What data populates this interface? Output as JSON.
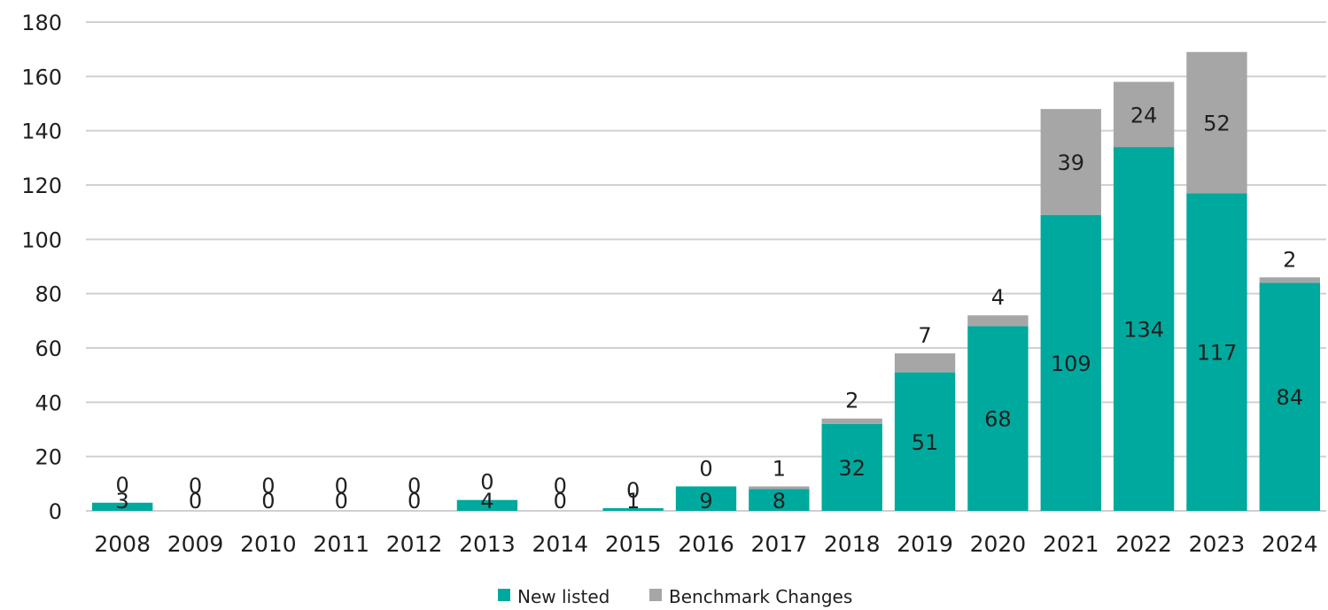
{
  "chart_data": {
    "type": "bar",
    "stacked": true,
    "categories": [
      "2008",
      "2009",
      "2010",
      "2011",
      "2012",
      "2013",
      "2014",
      "2015",
      "2016",
      "2017",
      "2018",
      "2019",
      "2020",
      "2021",
      "2022",
      "2023",
      "2024"
    ],
    "series": [
      {
        "name": "New listed",
        "color": "#00a99d",
        "values": [
          3,
          0,
          0,
          0,
          0,
          4,
          0,
          1,
          9,
          8,
          32,
          51,
          68,
          109,
          134,
          117,
          84
        ]
      },
      {
        "name": "Benchmark Changes",
        "color": "#a6a6a6",
        "values": [
          0,
          0,
          0,
          0,
          0,
          0,
          0,
          0,
          0,
          1,
          2,
          7,
          4,
          39,
          24,
          52,
          2
        ]
      }
    ],
    "ylim": [
      0,
      180
    ],
    "yticks": [
      "0",
      "20",
      "40",
      "60",
      "80",
      "100",
      "120",
      "140",
      "160",
      "180"
    ],
    "grid": true,
    "legend_position": "bottom-center"
  }
}
